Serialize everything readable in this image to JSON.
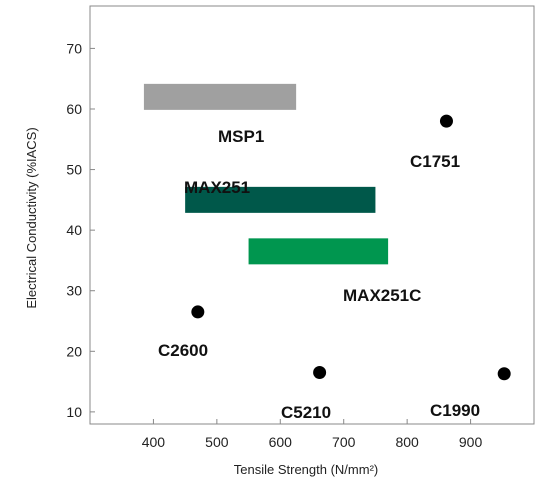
{
  "chart_data": {
    "type": "scatter",
    "xlabel": "Tensile Strength (N/mm²)",
    "ylabel": "Electrical Conductivity (%IACS)",
    "xlim": [
      300,
      1000
    ],
    "ylim": [
      8,
      77
    ],
    "x_ticks": [
      400,
      500,
      600,
      700,
      800,
      900
    ],
    "y_ticks": [
      10,
      20,
      30,
      40,
      50,
      60,
      70
    ],
    "grid": false,
    "ranges": [
      {
        "name": "MSP1",
        "x": [
          385,
          625
        ],
        "y": 62,
        "color": "#a0a0a0"
      },
      {
        "name": "MAX251",
        "x": [
          450,
          750
        ],
        "y": 45,
        "color": "#00584a"
      },
      {
        "name": "MAX251C",
        "x": [
          550,
          770
        ],
        "y": 36.5,
        "color": "#00964f"
      }
    ],
    "points": [
      {
        "name": "C1751",
        "x": 862,
        "y": 58
      },
      {
        "name": "C2600",
        "x": 470,
        "y": 26.5
      },
      {
        "name": "C5210",
        "x": 662,
        "y": 16.5
      },
      {
        "name": "C1990",
        "x": 953,
        "y": 16.3
      }
    ]
  }
}
